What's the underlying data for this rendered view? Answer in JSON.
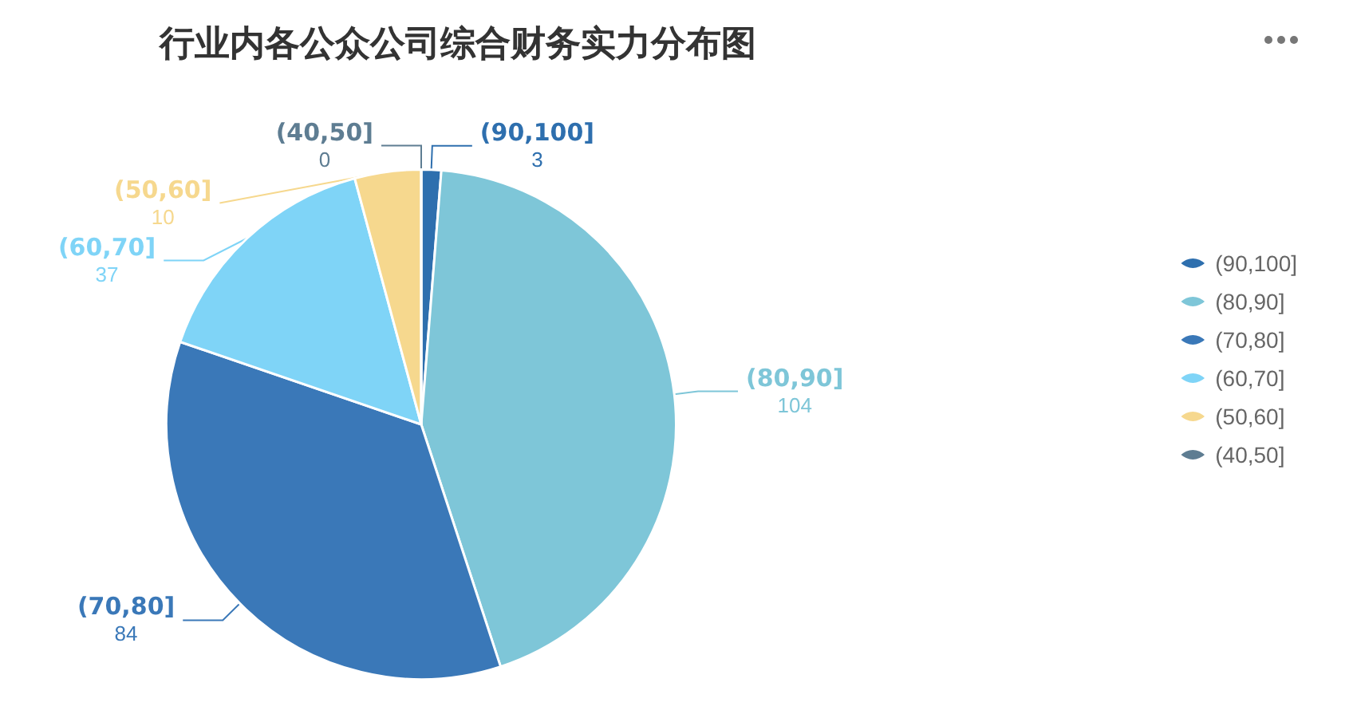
{
  "chart_data": {
    "type": "pie",
    "title": "行业内各公众公司综合财务实力分布图",
    "categories": [
      "(90,100]",
      "(80,90]",
      "(70,80]",
      "(60,70]",
      "(50,60]",
      "(40,50]"
    ],
    "values": [
      3,
      104,
      84,
      37,
      10,
      0
    ],
    "colors": [
      "#2e6fae",
      "#7ec6d8",
      "#3a78b8",
      "#7fd4f7",
      "#f6d88e",
      "#5e7d92"
    ],
    "value_labels": [
      "3",
      "104",
      "84",
      "37",
      "10",
      "0"
    ],
    "legend": "right"
  }
}
